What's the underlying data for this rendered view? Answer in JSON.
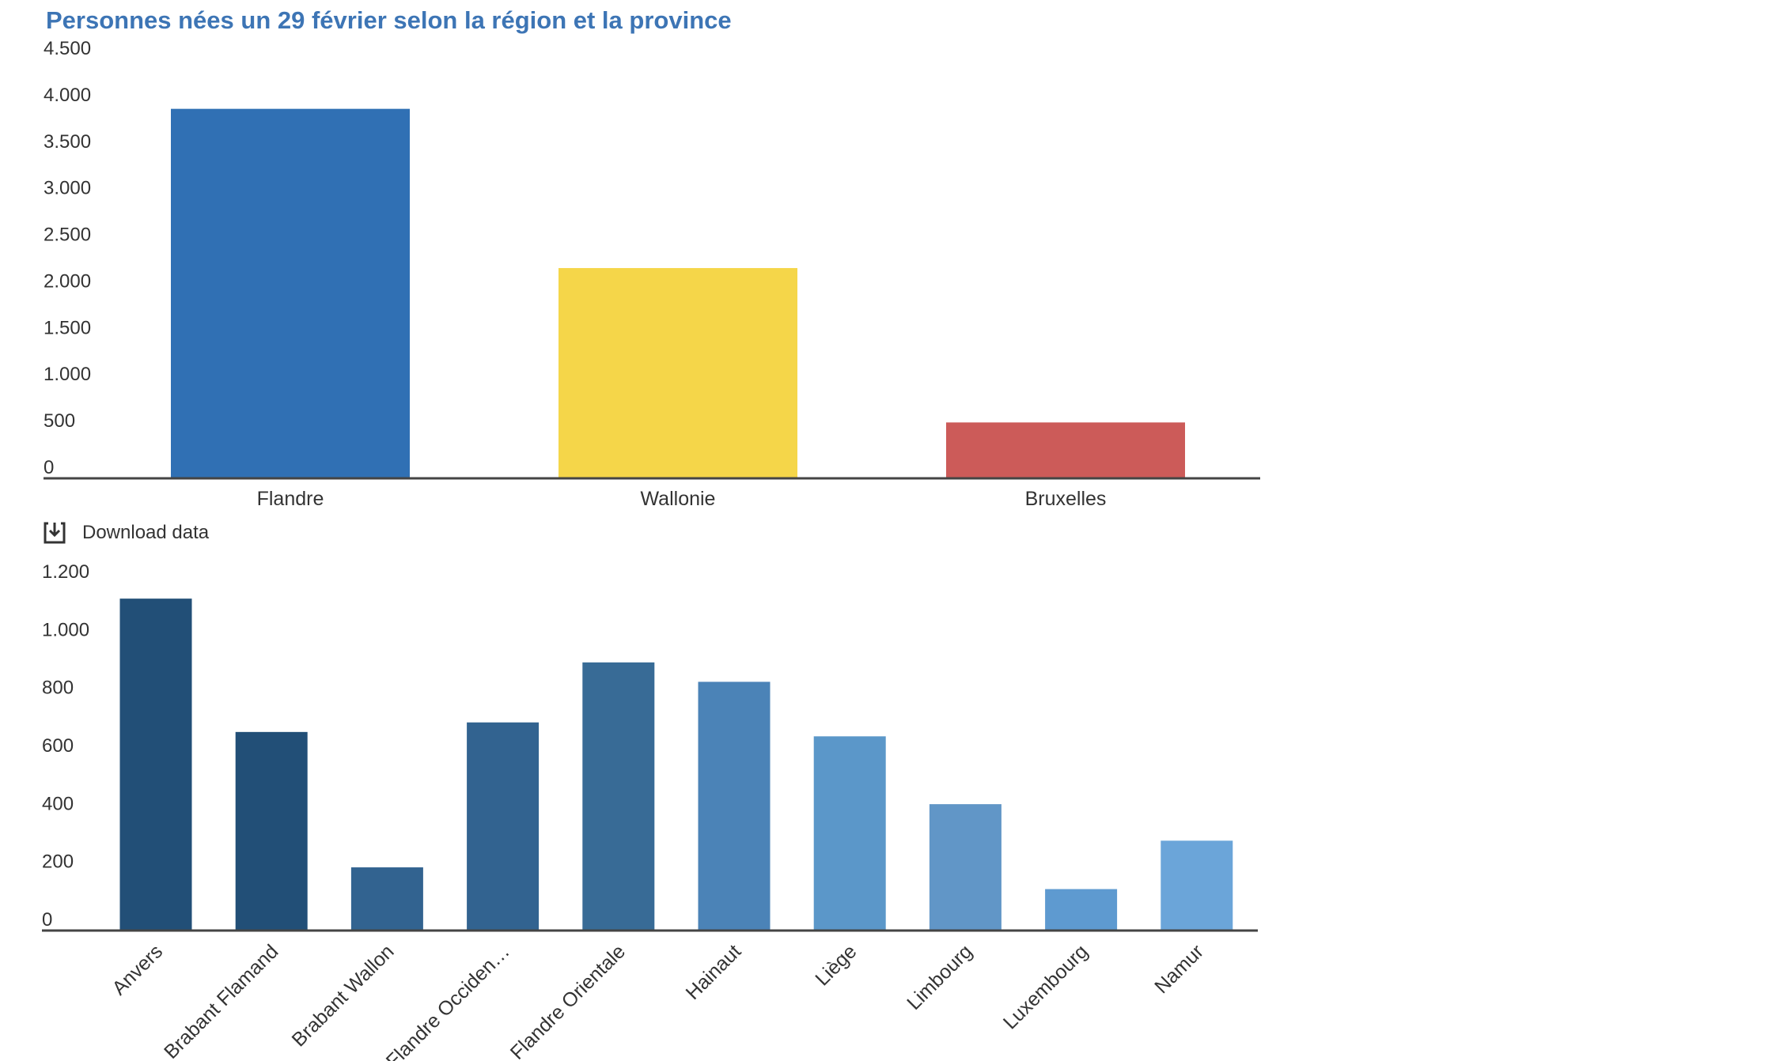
{
  "title": "Personnes nées un 29 février selon la région et la province",
  "download_label": "Download data",
  "chart_data": [
    {
      "type": "bar",
      "categories": [
        "Flandre",
        "Wallonie",
        "Bruxelles"
      ],
      "values": [
        3968,
        2258,
        600
      ],
      "colors": [
        "#3070b4",
        "#f5d649",
        "#cc5b59"
      ],
      "ylim": [
        0,
        4500
      ],
      "yticks": [
        0,
        500,
        1000,
        1500,
        2000,
        2500,
        3000,
        3500,
        4000,
        4500
      ],
      "ytick_labels": [
        "0",
        "500",
        "1.000",
        "1.500",
        "2.000",
        "2.500",
        "3.000",
        "3.500",
        "4.000",
        "4.500"
      ],
      "xlabel": "",
      "ylabel": ""
    },
    {
      "type": "bar",
      "categories": [
        "Anvers",
        "Brabant Flamand",
        "Brabant Wallon",
        "Flandre Occiden…",
        "Flandre Orientale",
        "Hainaut",
        "Liège",
        "Limbourg",
        "Luxembourg",
        "Namur"
      ],
      "values": [
        1145,
        685,
        218,
        718,
        925,
        858,
        670,
        436,
        143,
        310
      ],
      "colors": [
        "#224f77",
        "#224f77",
        "#326390",
        "#326390",
        "#386b96",
        "#4b83b7",
        "#5b97c9",
        "#6196c7",
        "#5e9ad0",
        "#6ba5d9"
      ],
      "ylim": [
        0,
        1200
      ],
      "yticks": [
        0,
        200,
        400,
        600,
        800,
        1000,
        1200
      ],
      "ytick_labels": [
        "0",
        "200",
        "400",
        "600",
        "800",
        "1.000",
        "1.200"
      ],
      "xlabel": "",
      "ylabel": ""
    }
  ]
}
